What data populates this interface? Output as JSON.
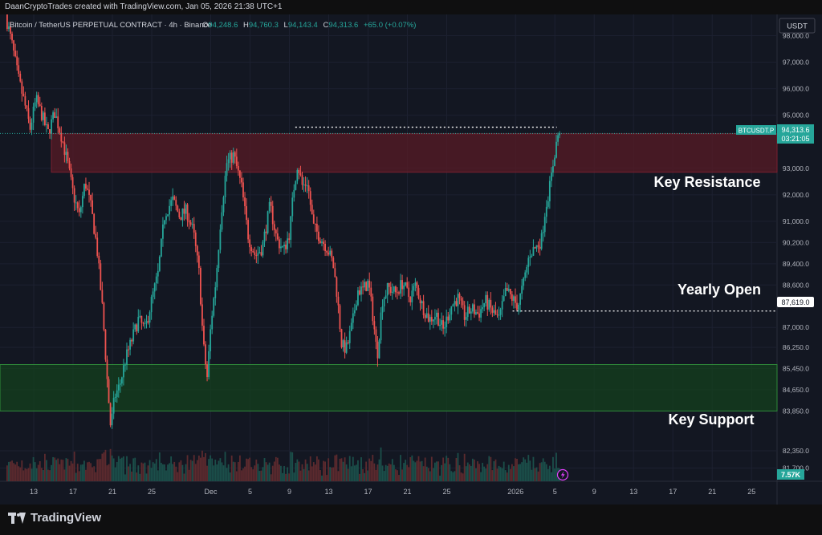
{
  "header": {
    "attribution": "DaanCryptoTrades created with TradingView.com, Jan 05, 2026 21:38 UTC+1"
  },
  "legend": {
    "symbol": "Bitcoin / TetherUS PERPETUAL CONTRACT · 4h · Binance",
    "open_label": "O",
    "open": "94,248.6",
    "high_label": "H",
    "high": "94,760.3",
    "low_label": "L",
    "low": "94,143.4",
    "close_label": "C",
    "close": "94,313.6",
    "change": "+65.0 (+0.07%)"
  },
  "price_scale": {
    "currency": "USDT"
  },
  "markers": {
    "ticker": "BTCUSDT.P",
    "last_price": "94,313.6",
    "countdown": "03:21:05",
    "yearly_open_price": "87,619.0",
    "volume": "7.57K"
  },
  "annotations": {
    "key_resistance": "Key Resistance",
    "yearly_open": "Yearly Open",
    "key_support": "Key Support"
  },
  "footer": {
    "brand": "TradingView"
  },
  "colors": {
    "background": "#131722",
    "up": "#26a69a",
    "down": "#ef5350",
    "resistance_zone": "#5a1a26",
    "support_zone": "#14401e",
    "text": "#d1d4dc"
  },
  "chart_data": {
    "type": "candlestick",
    "timeframe": "4h",
    "ylim": [
      81200,
      98800
    ],
    "y_ticks": [
      98000,
      97000,
      96000,
      95000,
      93000,
      92000,
      91000,
      90200,
      89400,
      88600,
      87000,
      86250,
      85450,
      84650,
      83850,
      82350,
      81700
    ],
    "y_tick_labels": [
      "98,000.0",
      "97,000.0",
      "96,000.0",
      "95,000.0",
      "93,000.0",
      "92,000.0",
      "91,000.0",
      "90,200.0",
      "89,400.0",
      "88,600.0",
      "87,000.0",
      "86,250.0",
      "85,450.0",
      "84,650.0",
      "83,850.0",
      "82,350.0",
      "81,700.0"
    ],
    "x_ticks": [
      {
        "label": "13",
        "day": 13
      },
      {
        "label": "17",
        "day": 17
      },
      {
        "label": "21",
        "day": 21
      },
      {
        "label": "25",
        "day": 25
      },
      {
        "label": "Dec",
        "day": 31
      },
      {
        "label": "5",
        "day": 35
      },
      {
        "label": "9",
        "day": 39
      },
      {
        "label": "13",
        "day": 43
      },
      {
        "label": "17",
        "day": 47
      },
      {
        "label": "21",
        "day": 51
      },
      {
        "label": "25",
        "day": 55
      },
      {
        "label": "2026",
        "day": 62
      },
      {
        "label": "5",
        "day": 66
      },
      {
        "label": "9",
        "day": 70
      },
      {
        "label": "13",
        "day": 74
      },
      {
        "label": "17",
        "day": 78
      },
      {
        "label": "21",
        "day": 82
      },
      {
        "label": "25",
        "day": 86
      }
    ],
    "start_day": 10.3,
    "last_day": 66.5,
    "key_resistance_zone": [
      92850,
      94300
    ],
    "key_support_zone": [
      83850,
      85600
    ],
    "yearly_open": 87619.0,
    "last_price": 94313.6,
    "anchors": [
      [
        10.3,
        98800
      ],
      [
        11.0,
        97600
      ],
      [
        11.6,
        96400
      ],
      [
        12.2,
        95500
      ],
      [
        12.8,
        94500
      ],
      [
        13.4,
        95600
      ],
      [
        14.0,
        95000
      ],
      [
        14.6,
        94300
      ],
      [
        15.3,
        95100
      ],
      [
        16.0,
        94200
      ],
      [
        16.6,
        93200
      ],
      [
        17.2,
        92000
      ],
      [
        17.8,
        91200
      ],
      [
        18.4,
        92500
      ],
      [
        19.0,
        91500
      ],
      [
        19.6,
        90000
      ],
      [
        20.2,
        87500
      ],
      [
        20.6,
        85200
      ],
      [
        21.0,
        83200
      ],
      [
        21.4,
        84400
      ],
      [
        21.9,
        84800
      ],
      [
        22.5,
        85800
      ],
      [
        23.2,
        86600
      ],
      [
        23.8,
        87300
      ],
      [
        24.5,
        86900
      ],
      [
        25.2,
        88100
      ],
      [
        25.8,
        89000
      ],
      [
        26.5,
        91300
      ],
      [
        27.3,
        91800
      ],
      [
        28.0,
        91200
      ],
      [
        28.7,
        91400
      ],
      [
        29.4,
        90600
      ],
      [
        30.0,
        89000
      ],
      [
        30.4,
        86400
      ],
      [
        30.8,
        85100
      ],
      [
        31.2,
        87200
      ],
      [
        31.7,
        88800
      ],
      [
        32.2,
        91200
      ],
      [
        32.8,
        93200
      ],
      [
        33.5,
        93500
      ],
      [
        34.3,
        92300
      ],
      [
        35.0,
        90400
      ],
      [
        35.7,
        89700
      ],
      [
        36.4,
        90000
      ],
      [
        37.2,
        91600
      ],
      [
        37.9,
        90300
      ],
      [
        38.6,
        89900
      ],
      [
        39.2,
        90600
      ],
      [
        39.6,
        92200
      ],
      [
        40.0,
        93200
      ],
      [
        40.5,
        92300
      ],
      [
        41.0,
        92500
      ],
      [
        41.6,
        90800
      ],
      [
        42.3,
        90400
      ],
      [
        43.0,
        90000
      ],
      [
        43.6,
        89400
      ],
      [
        44.0,
        88300
      ],
      [
        44.5,
        86300
      ],
      [
        45.0,
        86200
      ],
      [
        45.6,
        87200
      ],
      [
        46.1,
        88400
      ],
      [
        46.6,
        88400
      ],
      [
        47.2,
        88700
      ],
      [
        47.7,
        87300
      ],
      [
        48.1,
        85900
      ],
      [
        48.6,
        88000
      ],
      [
        49.2,
        88500
      ],
      [
        50.0,
        88300
      ],
      [
        50.7,
        88700
      ],
      [
        51.4,
        88100
      ],
      [
        52.0,
        88600
      ],
      [
        52.7,
        87800
      ],
      [
        53.4,
        87300
      ],
      [
        54.1,
        87500
      ],
      [
        54.8,
        86900
      ],
      [
        55.6,
        87800
      ],
      [
        56.3,
        88100
      ],
      [
        57.0,
        87400
      ],
      [
        57.7,
        87700
      ],
      [
        58.4,
        87500
      ],
      [
        59.1,
        88000
      ],
      [
        59.8,
        87600
      ],
      [
        60.5,
        87300
      ],
      [
        61.2,
        88400
      ],
      [
        61.8,
        88100
      ],
      [
        62.4,
        87800
      ],
      [
        63.0,
        88700
      ],
      [
        63.6,
        89800
      ],
      [
        64.2,
        90000
      ],
      [
        64.8,
        90300
      ],
      [
        65.2,
        91500
      ],
      [
        65.7,
        92400
      ],
      [
        66.1,
        93500
      ],
      [
        66.5,
        94313.6
      ]
    ],
    "volume_scale_max": 8.2
  }
}
